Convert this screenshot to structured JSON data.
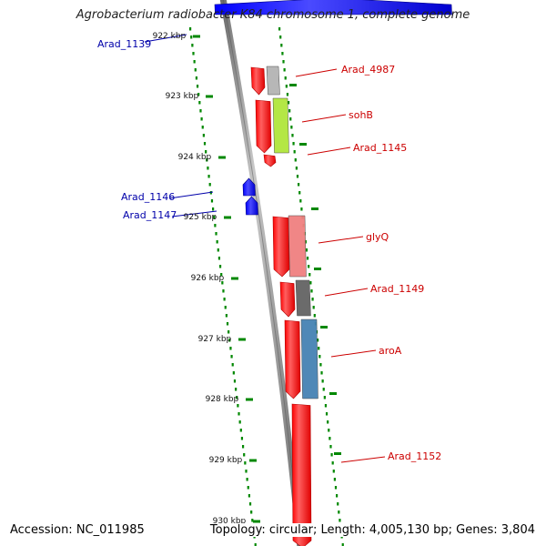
{
  "title": "Agrobacterium radiobacter K84 chromosome 1, complete genome",
  "footer": {
    "accession": "Accession: NC_011985",
    "topology": "Topology: circular; Length: 4,005,130 bp; Genes: 3,804"
  },
  "colors": {
    "forward": "#ff0000",
    "reverse": "#0000ff",
    "forward_label": "#cc0000",
    "reverse_label": "#0000aa",
    "tick": "#008800",
    "backbone": "#808080"
  },
  "ticks": [
    "922 kbp",
    "923 kbp",
    "924 kbp",
    "925 kbp",
    "926 kbp",
    "927 kbp",
    "928 kbp",
    "929 kbp",
    "930 kbp"
  ],
  "genes": [
    {
      "label": "Arad_1139",
      "strand": "reverse"
    },
    {
      "label": "Arad_4987",
      "strand": "forward",
      "cog_color": "#b4b4b4"
    },
    {
      "label": "sohB",
      "strand": "forward",
      "cog_color": "#b0e63c"
    },
    {
      "label": "Arad_1145",
      "strand": "forward"
    },
    {
      "label": "Arad_1146",
      "strand": "reverse"
    },
    {
      "label": "Arad_1147",
      "strand": "reverse"
    },
    {
      "label": "glyQ",
      "strand": "forward",
      "cog_color": "#f08080"
    },
    {
      "label": "Arad_1149",
      "strand": "forward",
      "cog_color": "#646464"
    },
    {
      "label": "aroA",
      "strand": "forward",
      "cog_color": "#4682b4"
    },
    {
      "label": "Arad_1152",
      "strand": "forward"
    }
  ]
}
